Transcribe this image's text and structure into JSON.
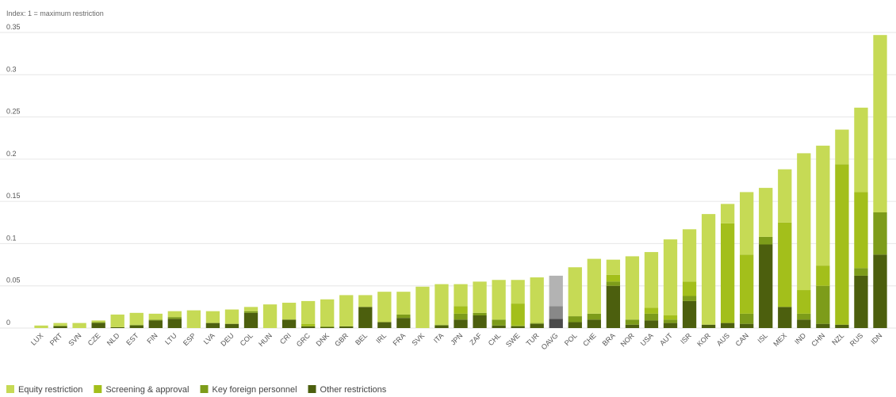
{
  "chart_data": {
    "type": "bar",
    "stacked": true,
    "ylabel": "Index: 1 = maximum restriction",
    "ylim": [
      0,
      0.35
    ],
    "yticks": [
      "0",
      "0.05",
      "0.1",
      "0.15",
      "0.2",
      "0.25",
      "0.3",
      "0.35"
    ],
    "grid": true,
    "legend_position": "bottom-left",
    "categories": [
      "LUX",
      "PRT",
      "SVN",
      "CZE",
      "NLD",
      "EST",
      "FIN",
      "LTU",
      "ESP",
      "LVA",
      "DEU",
      "COL",
      "HUN",
      "CRI",
      "GRC",
      "DNK",
      "GBR",
      "BEL",
      "IRL",
      "FRA",
      "SVK",
      "ITA",
      "JPN",
      "ZAF",
      "CHL",
      "SWE",
      "TUR",
      "OAVG",
      "POL",
      "CHE",
      "BRA",
      "NOR",
      "USA",
      "AUT",
      "ISR",
      "KOR",
      "AUS",
      "CAN",
      "ISL",
      "MEX",
      "IND",
      "CHN",
      "NZL",
      "RUS",
      "IDN"
    ],
    "highlight_category": "OAVG",
    "highlight_colors": [
      "#4a4a4a",
      "#888888",
      "#b3b3b3"
    ],
    "series": [
      {
        "name": "Other restrictions",
        "color": "#4c5f0e",
        "values": [
          0,
          0.002,
          0,
          0.006,
          0.001,
          0.003,
          0.009,
          0.011,
          0,
          0.006,
          0.005,
          0.018,
          0,
          0.01,
          0.002,
          0.001,
          0.002,
          0.025,
          0.007,
          0.012,
          0,
          0.003,
          0.01,
          0.015,
          0.003,
          0.002,
          0.005,
          0.011,
          0.007,
          0.01,
          0.05,
          0.004,
          0.009,
          0.006,
          0.032,
          0.004,
          0.006,
          0.005,
          0.099,
          0.025,
          0.01,
          0.005,
          0.004,
          0.062,
          0.087
        ]
      },
      {
        "name": "Key foreign personnel",
        "color": "#7d9c1a",
        "values": [
          0,
          0.001,
          0,
          0.001,
          0,
          0.001,
          0.001,
          0.002,
          0,
          0,
          0,
          0.002,
          0,
          0,
          0,
          0.001,
          0,
          0,
          0,
          0.004,
          0,
          0.001,
          0.007,
          0.003,
          0.007,
          0.001,
          0.001,
          0.015,
          0.007,
          0.007,
          0.005,
          0.006,
          0.008,
          0.004,
          0.006,
          0,
          0,
          0.012,
          0.009,
          0,
          0.007,
          0.045,
          0,
          0.009,
          0.05
        ]
      },
      {
        "name": "Screening & approval",
        "color": "#a3bf1b",
        "values": [
          0,
          0,
          0,
          0,
          0,
          0,
          0,
          0,
          0,
          0,
          0,
          0,
          0,
          0,
          0.003,
          0,
          0,
          0,
          0,
          0,
          0,
          0,
          0.009,
          0,
          0,
          0.026,
          0,
          0,
          0,
          0,
          0.008,
          0,
          0.007,
          0.005,
          0.017,
          0,
          0.118,
          0.07,
          0,
          0.1,
          0.028,
          0.024,
          0.19,
          0.09,
          0
        ]
      },
      {
        "name": "Equity restriction",
        "color": "#c6da55",
        "values": [
          0.003,
          0.003,
          0.006,
          0.002,
          0.015,
          0.014,
          0.007,
          0.007,
          0.021,
          0.014,
          0.017,
          0.005,
          0.028,
          0.02,
          0.027,
          0.032,
          0.037,
          0.014,
          0.036,
          0.027,
          0.049,
          0.048,
          0.026,
          0.037,
          0.047,
          0.028,
          0.054,
          0.036,
          0.058,
          0.065,
          0.018,
          0.075,
          0.066,
          0.09,
          0.062,
          0.131,
          0.023,
          0.074,
          0.058,
          0.063,
          0.162,
          0.142,
          0.041,
          0.1,
          0.21
        ]
      }
    ]
  }
}
